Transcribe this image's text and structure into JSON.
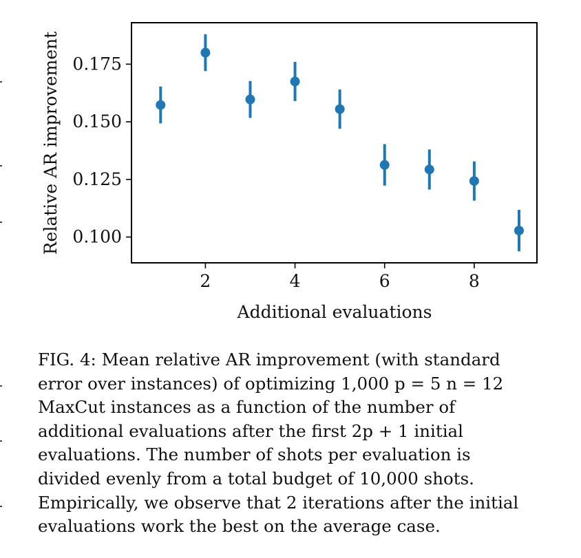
{
  "chart_data": {
    "type": "scatter",
    "xlabel": "Additional evaluations",
    "ylabel": "Relative AR improvement",
    "xlim": [
      0.35,
      9.4
    ],
    "ylim": [
      0.0888,
      0.193
    ],
    "xticks": [
      2,
      4,
      6,
      8
    ],
    "xtick_labels": [
      "2",
      "4",
      "6",
      "8"
    ],
    "yticks": [
      0.1,
      0.125,
      0.15,
      0.175
    ],
    "ytick_labels": [
      "0.100",
      "0.125",
      "0.150",
      "0.175"
    ],
    "marker_color": "#1f77b4",
    "grid": false,
    "points": [
      {
        "x": 1,
        "y": 0.1573,
        "err": 0.008
      },
      {
        "x": 2,
        "y": 0.18,
        "err": 0.008
      },
      {
        "x": 3,
        "y": 0.1597,
        "err": 0.008
      },
      {
        "x": 4,
        "y": 0.1675,
        "err": 0.0085
      },
      {
        "x": 5,
        "y": 0.1555,
        "err": 0.0085
      },
      {
        "x": 6,
        "y": 0.1313,
        "err": 0.009
      },
      {
        "x": 7,
        "y": 0.1293,
        "err": 0.0087
      },
      {
        "x": 8,
        "y": 0.1243,
        "err": 0.0085
      },
      {
        "x": 9,
        "y": 0.1028,
        "err": 0.009
      }
    ]
  },
  "caption": {
    "lines": [
      "FIG. 4: Mean relative AR improvement (with standard",
      "error over instances) of optimizing 1,000 p = 5 n = 12",
      "MaxCut instances as a function of the number of",
      "additional evaluations after the first 2p + 1 initial",
      "evaluations. The number of shots per evaluation is",
      "divided evenly from a total budget of 10,000 shots.",
      "Empirically, we observe that 2 iterations after the initial",
      "evaluations work the best on the average case."
    ]
  }
}
